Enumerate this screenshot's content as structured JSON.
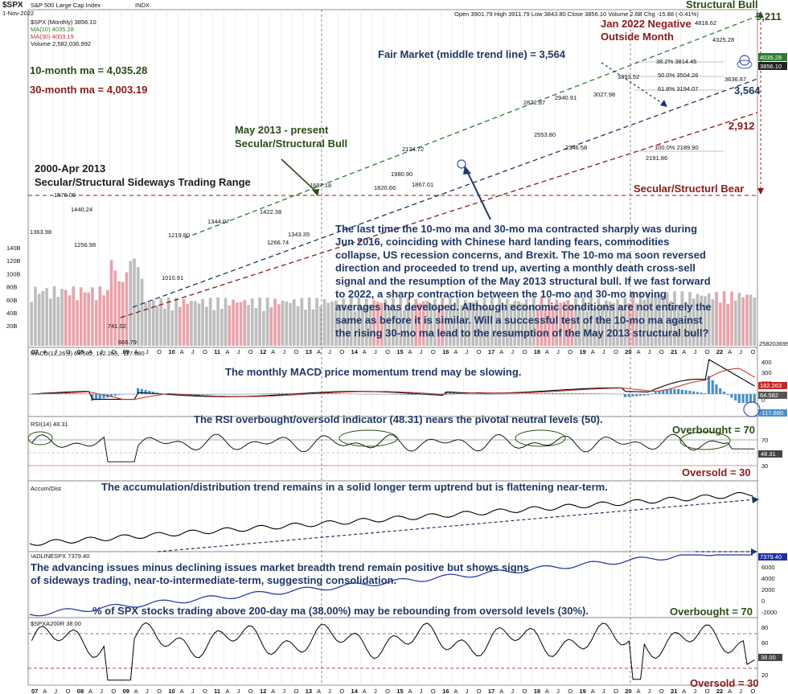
{
  "header": {
    "ticker": "$SPX",
    "name": "S&P 500 Large Cap Index",
    "exchange": "INDX",
    "date": "1-Nov-2022",
    "ohlc": "Open 3901.79  High 3911.79  Low 3843.80  Close 3856.10  Volume 2.6B  Chg -15.88 (-0.41%)",
    "legend_price": "$SPX (Monthly) 3856.10",
    "legend_ma10": "MA(10) 4035.28",
    "legend_ma30": "MA(30) 4003.19",
    "legend_vol": "Volume 2,582,036,992"
  },
  "colors": {
    "price": "#000000",
    "ma10": "#2e7d32",
    "ma30": "#c62828",
    "volume_up": "#bdbdbd",
    "volume_down": "#e8a3aa",
    "macd_hist": "#4a90c8",
    "annotation_blue": "#1f3864",
    "annotation_green": "#2d4d16",
    "annotation_red": "#8b1a1a",
    "adline": "#1f2fa0"
  },
  "annotations": {
    "ma10_label": "10-month ma = 4,035.28",
    "ma30_label": "30-month ma = 4,003.19",
    "range_title_1": "2000-Apr 2013",
    "range_title_2": "Secular/Structural Sideways Trading Range",
    "bull_title_1": "May 2013 - present",
    "bull_title_2": "Secular/Structural Bull",
    "structural_bull": "Structural Bull",
    "jan_2022_1": "Jan 2022 Negative",
    "jan_2022_2": "Outside Month",
    "fair_market": "Fair Market (middle trend line) = 3,564",
    "val_5211": "5,211",
    "val_3564": "3,564",
    "val_2912": "2,912",
    "bear": "Secular/Structurl Bear",
    "paragraph": [
      "The last time the 10-mo ma and 30-mo ma contracted sharply was during",
      "Jun 2016, coinciding with Chinese hard landing fears, commodities",
      "collapse, US recession concerns, and Brexit. The 10-mo ma soon reversed",
      "direction and proceeded to trend up, averting a monthly death cross-sell",
      "signal and the resumption of the May 2013 structural bull. If we fast forward",
      "to 2022, a sharp contraction between the 10-mo and 30-mo moving",
      "averages has developed. Although economic conditions are not entirely the",
      "same as before it is similar. Will a successful test of the 10-mo ma against",
      "the rising 30-mo ma lead to the resumption of the May 2013 structural bull?"
    ],
    "macd_note": "The monthly MACD price momentum trend may be slowing.",
    "rsi_note": "The RSI overbought/oversold indicator (48.31) nears the pivotal neutral levels (50).",
    "overbought_70": "Overbought = 70",
    "oversold_30": "Oversold = 30",
    "accum_note": "The accumulation/distribution trend remains in a solid longer term uptrend but is flattening near-term.",
    "ad_note_1": "The advancing issues minus declining issues market breadth trend remain positive but shows signs",
    "ad_note_2": "of sideways trading, near-to-intermediate-term, suggesting consolidation.",
    "pct200_note": "% of SPX stocks trading above 200-day ma (38.00%) may be rebounding from oversold levels (30%)."
  },
  "price_labels": [
    "1576.09",
    "1440.24",
    "1363.98",
    "1256.98",
    "741.02",
    "666.79",
    "1219.80",
    "1010.91",
    "1344.07",
    "1422.38",
    "1266.74",
    "1343.35",
    "1687.18",
    "1820.66",
    "1867.01",
    "1980.90",
    "2134.72",
    "2872.87",
    "2940.91",
    "2553.80",
    "2346.58",
    "3027.98",
    "3393.52",
    "2191.86",
    "4325.28",
    "4818.62",
    "3636.87"
  ],
  "fib_labels": [
    "38.2% 3814.45",
    "50.0% 3504.26",
    "61.8% 3194.07",
    "100.0% 2189.90"
  ],
  "price_axis_ticks": [
    "4800",
    "4600",
    "4400",
    "4200",
    "4000",
    "3800",
    "3600",
    "3400",
    "3200",
    "3000",
    "2800",
    "2600",
    "2400",
    "2200",
    "2000",
    "1800",
    "1600",
    "1400",
    "1200",
    "1000",
    "800"
  ],
  "price_tags": {
    "ma10": "4035.28",
    "close": "3856.10"
  },
  "volume_axis_ticks": [
    "140B",
    "120B",
    "100B",
    "80B",
    "60B",
    "40B",
    "20B"
  ],
  "volume_tag": "2582036992",
  "x_axis_labels": [
    "07",
    "A",
    "J",
    "O",
    "08",
    "A",
    "J",
    "O",
    "09",
    "A",
    "J",
    "O",
    "10",
    "A",
    "J",
    "O",
    "11",
    "A",
    "J",
    "O",
    "12",
    "A",
    "J",
    "O",
    "13",
    "A",
    "J",
    "O",
    "14",
    "A",
    "J",
    "O",
    "15",
    "A",
    "J",
    "O",
    "16",
    "A",
    "J",
    "O",
    "17",
    "A",
    "J",
    "O",
    "18",
    "A",
    "J",
    "O",
    "19",
    "A",
    "J",
    "O",
    "20",
    "A",
    "J",
    "O",
    "21",
    "A",
    "J",
    "O",
    "22",
    "A",
    "J",
    "O"
  ],
  "panels": {
    "macd": {
      "legend": "MACD(12,26,9) 64.582, 182.263, -117.680",
      "ticks": [
        "400",
        "300",
        "200",
        "100",
        "0"
      ],
      "tags": [
        "182.263",
        "64.582",
        "-117.680"
      ]
    },
    "rsi": {
      "legend": "RSI(14) 48.31",
      "ticks": [
        "70",
        "50",
        "30"
      ],
      "tag": "48.31"
    },
    "accum": {
      "legend": "Accum/Dist"
    },
    "adline": {
      "legend": "!ADLINESPX 7379.40",
      "ticks": [
        "6000",
        "4000",
        "2000",
        "0",
        "-2000"
      ],
      "tag": "7379.40"
    },
    "pct200": {
      "legend": "$SPXA200R 38.00",
      "ticks": [
        "80",
        "60",
        "40",
        "20"
      ],
      "tag": "38.00"
    }
  },
  "chart_data": [
    {
      "type": "line",
      "title": "$SPX S&P 500 Large Cap Index INDX",
      "xlabel": "",
      "ylabel": "",
      "x_range": [
        "2007-01",
        "2022-11"
      ],
      "ylim": [
        600,
        5000
      ],
      "log_scale": true,
      "anchors_x": [
        2007.0,
        2007.75,
        2008.2,
        2008.7,
        2009.17,
        2009.8,
        2010.3,
        2010.5,
        2011.3,
        2011.75,
        2012.25,
        2012.45,
        2012.9,
        2013.4,
        2014.0,
        2014.5,
        2014.8,
        2015.4,
        2015.7,
        2015.9,
        2016.1,
        2016.6,
        2017.0,
        2017.5,
        2018.05,
        2018.5,
        2018.95,
        2019.3,
        2019.75,
        2020.1,
        2020.2,
        2020.6,
        2020.9,
        2021.3,
        2021.9,
        2022.0,
        2022.2,
        2022.45,
        2022.6,
        2022.75,
        2022.83
      ],
      "series": [
        {
          "name": "$SPX",
          "values": [
            1420,
            1576,
            1363,
            1257,
            741,
            1115,
            1219,
            1022,
            1344,
            1131,
            1422,
            1266,
            1426,
            1640,
            1820,
            1975,
            1940,
            2134,
            1920,
            2050,
            1867,
            2170,
            2280,
            2440,
            2872,
            2720,
            2346,
            2940,
            2980,
            3393,
            2191,
            3100,
            3750,
            4200,
            4766,
            4818,
            4540,
            3636,
            4130,
            3585,
            3856
          ]
        }
      ]
    },
    {
      "type": "line",
      "title": "RSI(14)",
      "xlabel": "",
      "ylabel": "",
      "ylim": [
        0,
        100
      ],
      "series": [
        {
          "name": "RSI(14)",
          "values": [
            48.31
          ]
        }
      ]
    },
    {
      "type": "line",
      "title": "% of SPX stocks above 200-day ma",
      "xlabel": "",
      "ylabel": "",
      "ylim": [
        0,
        100
      ],
      "series": [
        {
          "name": "$SPXA200R",
          "values": [
            38.0
          ]
        }
      ]
    }
  ]
}
